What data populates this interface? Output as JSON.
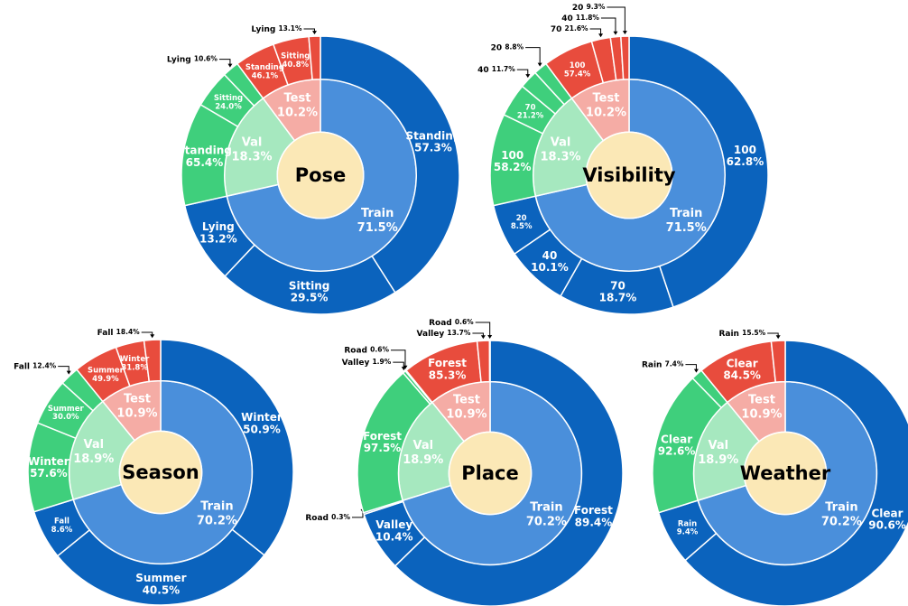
{
  "chart_data": [
    {
      "type": "sunburst",
      "title": "Pose",
      "splits": [
        {
          "name": "Train",
          "value": 71.5,
          "value_label": "71.5%",
          "color": "#4a8fdb",
          "outer_color": "#0b63bd",
          "categories": [
            "Standing",
            "Sitting",
            "Lying"
          ],
          "values": [
            57.3,
            29.5,
            13.2
          ],
          "value_labels": [
            "57.3%",
            "29.5%",
            "13.2%"
          ]
        },
        {
          "name": "Val",
          "value": 18.3,
          "value_label": "18.3%",
          "color": "#a6e8bf",
          "outer_color": "#3fcf7c",
          "categories": [
            "Standing",
            "Sitting",
            "Lying"
          ],
          "values": [
            65.4,
            24.0,
            10.6
          ],
          "value_labels": [
            "65.4%",
            "24.0%",
            "10.6%"
          ]
        },
        {
          "name": "Test",
          "value": 10.2,
          "value_label": "10.2%",
          "color": "#f5aca5",
          "outer_color": "#e84c3d",
          "categories": [
            "Standing",
            "Sitting",
            "Lying"
          ],
          "values": [
            46.1,
            40.8,
            13.1
          ],
          "value_labels": [
            "46.1%",
            "40.8%",
            "13.1%"
          ]
        }
      ]
    },
    {
      "type": "sunburst",
      "title": "Visibility",
      "splits": [
        {
          "name": "Train",
          "value": 71.5,
          "value_label": "71.5%",
          "color": "#4a8fdb",
          "outer_color": "#0b63bd",
          "categories": [
            "100",
            "70",
            "40",
            "20"
          ],
          "values": [
            62.8,
            18.7,
            10.1,
            8.5
          ],
          "value_labels": [
            "62.8%",
            "18.7%",
            "10.1%",
            "8.5%"
          ]
        },
        {
          "name": "Val",
          "value": 18.3,
          "value_label": "18.3%",
          "color": "#a6e8bf",
          "outer_color": "#3fcf7c",
          "categories": [
            "100",
            "70",
            "40",
            "20"
          ],
          "values": [
            58.2,
            21.2,
            11.7,
            8.8
          ],
          "value_labels": [
            "58.2%",
            "21.2%",
            "11.7%",
            "8.8%"
          ]
        },
        {
          "name": "Test",
          "value": 10.2,
          "value_label": "10.2%",
          "color": "#f5aca5",
          "outer_color": "#e84c3d",
          "categories": [
            "100",
            "70",
            "40",
            "20"
          ],
          "values": [
            57.4,
            21.6,
            11.8,
            9.3
          ],
          "value_labels": [
            "57.4%",
            "21.6%",
            "11.8%",
            "9.3%"
          ]
        }
      ]
    },
    {
      "type": "sunburst",
      "title": "Season",
      "splits": [
        {
          "name": "Train",
          "value": 70.2,
          "value_label": "70.2%",
          "color": "#4a8fdb",
          "outer_color": "#0b63bd",
          "categories": [
            "Winter",
            "Summer",
            "Fall"
          ],
          "values": [
            50.9,
            40.5,
            8.6
          ],
          "value_labels": [
            "50.9%",
            "40.5%",
            "8.6%"
          ]
        },
        {
          "name": "Val",
          "value": 18.9,
          "value_label": "18.9%",
          "color": "#a6e8bf",
          "outer_color": "#3fcf7c",
          "categories": [
            "Winter",
            "Summer",
            "Fall"
          ],
          "values": [
            57.6,
            30.0,
            12.4
          ],
          "value_labels": [
            "57.6%",
            "30.0%",
            "12.4%"
          ]
        },
        {
          "name": "Test",
          "value": 10.9,
          "value_label": "10.9%",
          "color": "#f5aca5",
          "outer_color": "#e84c3d",
          "categories": [
            "Summer",
            "Winter",
            "Fall"
          ],
          "values": [
            49.9,
            31.8,
            18.4
          ],
          "value_labels": [
            "49.9%",
            "31.8%",
            "18.4%"
          ]
        }
      ]
    },
    {
      "type": "sunburst",
      "title": "Place",
      "splits": [
        {
          "name": "Train",
          "value": 70.2,
          "value_label": "70.2%",
          "color": "#4a8fdb",
          "outer_color": "#0b63bd",
          "categories": [
            "Forest",
            "Valley",
            "Road"
          ],
          "values": [
            89.4,
            10.4,
            0.3
          ],
          "value_labels": [
            "89.4%",
            "10.4%",
            "0.3%"
          ]
        },
        {
          "name": "Val",
          "value": 18.9,
          "value_label": "18.9%",
          "color": "#a6e8bf",
          "outer_color": "#3fcf7c",
          "categories": [
            "Forest",
            "Valley",
            "Road"
          ],
          "values": [
            97.5,
            1.9,
            0.6
          ],
          "value_labels": [
            "97.5%",
            "1.9%",
            "0.6%"
          ]
        },
        {
          "name": "Test",
          "value": 10.9,
          "value_label": "10.9%",
          "color": "#f5aca5",
          "outer_color": "#e84c3d",
          "categories": [
            "Forest",
            "Valley",
            "Road"
          ],
          "values": [
            85.3,
            13.7,
            0.6
          ],
          "value_labels": [
            "85.3%",
            "13.7%",
            "0.6%"
          ]
        }
      ]
    },
    {
      "type": "sunburst",
      "title": "Weather",
      "splits": [
        {
          "name": "Train",
          "value": 70.2,
          "value_label": "70.2%",
          "color": "#4a8fdb",
          "outer_color": "#0b63bd",
          "categories": [
            "Clear",
            "Rain"
          ],
          "values": [
            90.6,
            9.4
          ],
          "value_labels": [
            "90.6%",
            "9.4%"
          ]
        },
        {
          "name": "Val",
          "value": 18.9,
          "value_label": "18.9%",
          "color": "#a6e8bf",
          "outer_color": "#3fcf7c",
          "categories": [
            "Clear",
            "Rain"
          ],
          "values": [
            92.6,
            7.4
          ],
          "value_labels": [
            "92.6%",
            "7.4%"
          ]
        },
        {
          "name": "Test",
          "value": 10.9,
          "value_label": "10.9%",
          "color": "#f5aca5",
          "outer_color": "#e84c3d",
          "categories": [
            "Clear",
            "Rain"
          ],
          "values": [
            84.5,
            15.5
          ],
          "value_labels": [
            "84.5%",
            "15.5%"
          ]
        }
      ]
    }
  ]
}
